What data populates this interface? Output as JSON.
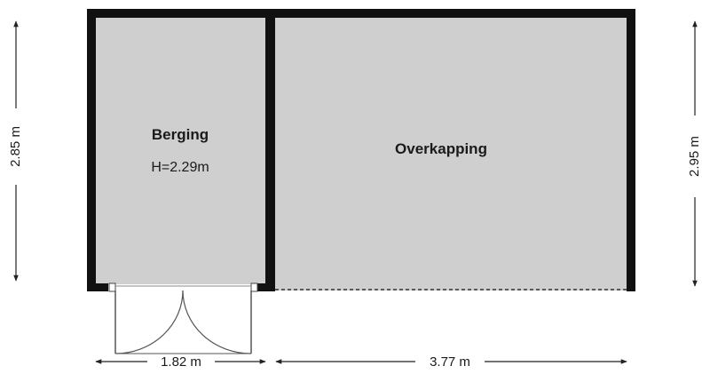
{
  "rooms": {
    "berging": {
      "name": "Berging",
      "height": "H=2.29m"
    },
    "overkapping": {
      "name": "Overkapping"
    }
  },
  "dimensions": {
    "left_height": "2.85 m",
    "right_height": "2.95 m",
    "berging_width": "1.82 m",
    "overkapping_width": "3.77 m"
  },
  "colors": {
    "floor": "#cfcfcf",
    "wall": "#111111",
    "line": "#222222",
    "door": "#555555"
  }
}
